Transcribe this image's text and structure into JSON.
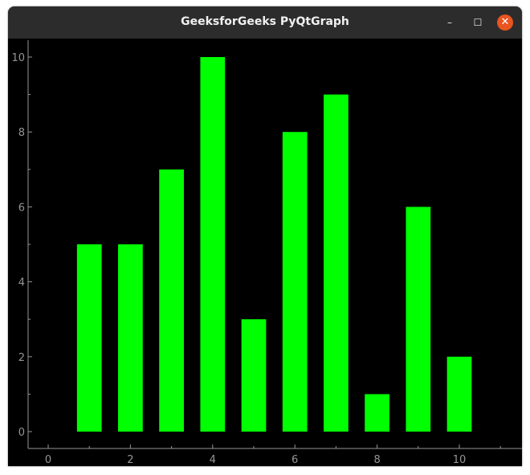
{
  "window": {
    "title": "GeeksforGeeks PyQtGraph",
    "minimize": "–",
    "maximize": "☐",
    "close": "✕"
  },
  "chart_data": {
    "type": "bar",
    "x": [
      1,
      2,
      3,
      4,
      5,
      6,
      7,
      8,
      9,
      10
    ],
    "values": [
      5,
      5,
      7,
      10,
      3,
      8,
      9,
      1,
      6,
      2
    ],
    "bar_width": 0.6,
    "bar_color": "#00ff00",
    "background": "#000000",
    "xlim": [
      -0.5,
      11.5
    ],
    "ylim": [
      -0.45,
      10.45
    ],
    "xticks": [
      0,
      2,
      4,
      6,
      8,
      10
    ],
    "xtick_labels": [
      "0",
      "2",
      "4",
      "6",
      "8",
      "10"
    ],
    "yticks": [
      0,
      2,
      4,
      6,
      8,
      10
    ],
    "ytick_labels": [
      "0",
      "2",
      "4",
      "6",
      "8",
      "10"
    ],
    "grid": false
  }
}
